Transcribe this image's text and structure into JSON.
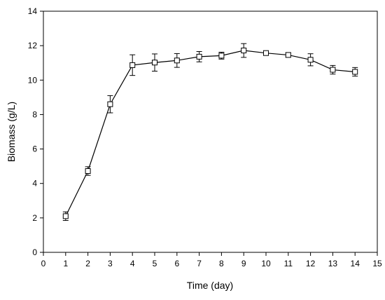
{
  "chart_data": {
    "type": "line",
    "title": "",
    "xlabel": "Time (day)",
    "ylabel": "Biomass (g/L)",
    "xlim": [
      0,
      15
    ],
    "ylim": [
      0,
      14
    ],
    "x_ticks": [
      0,
      1,
      2,
      3,
      4,
      5,
      6,
      7,
      8,
      9,
      10,
      11,
      12,
      13,
      14,
      15
    ],
    "y_ticks": [
      0,
      2,
      4,
      6,
      8,
      10,
      12,
      14
    ],
    "grid": false,
    "legend": "none",
    "marker": "open-square",
    "line_color": "#000000",
    "series": [
      {
        "x": [
          1,
          2,
          3,
          4,
          5,
          6,
          7,
          8,
          9,
          10,
          11,
          12,
          13,
          14
        ],
        "values": [
          2.1,
          4.72,
          8.6,
          10.87,
          11.02,
          11.14,
          11.36,
          11.42,
          11.72,
          11.57,
          11.46,
          11.18,
          10.6,
          10.48
        ],
        "error": [
          0.25,
          0.25,
          0.5,
          0.6,
          0.5,
          0.4,
          0.3,
          0.2,
          0.4,
          0.12,
          0.12,
          0.35,
          0.25,
          0.25
        ]
      }
    ]
  }
}
